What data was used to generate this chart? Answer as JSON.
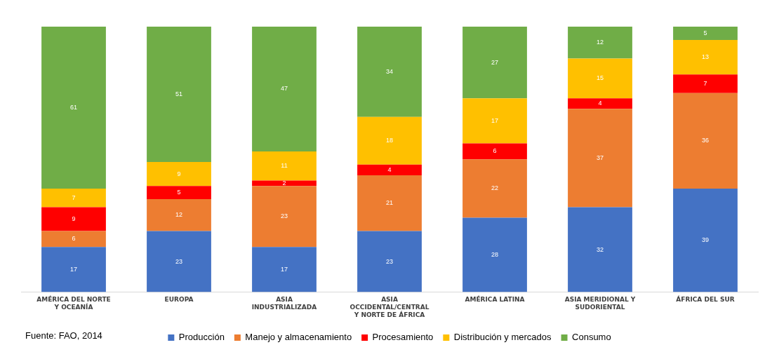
{
  "chart_data": {
    "type": "bar",
    "stacked": true,
    "data_labels": true,
    "legend": "bottom",
    "grid": false,
    "categories": [
      "AMÉRICA DEL NORTE\nY OCEANÍA",
      "EUROPA",
      "ASIA\nINDUSTRIALIZADA",
      "ASIA\nOCCIDENTAL/CENTRAL\nY NORTE DE ÁFRICA",
      "AMÉRICA LATINA",
      "ASIA MERIDIONAL Y\nSUDORIENTAL",
      "ÁFRICA DEL SUR"
    ],
    "series": [
      {
        "name": "Producción",
        "color": "#4472c4",
        "values": [
          17,
          23,
          17,
          23,
          28,
          32,
          39
        ]
      },
      {
        "name": "Manejo y almacenamiento",
        "color": "#ed7d31",
        "values": [
          6,
          12,
          23,
          21,
          22,
          37,
          36
        ]
      },
      {
        "name": "Procesamiento",
        "color": "#ff0000",
        "values": [
          9,
          5,
          2,
          4,
          6,
          4,
          7
        ]
      },
      {
        "name": "Distribución y mercados",
        "color": "#ffc000",
        "values": [
          7,
          9,
          11,
          18,
          17,
          15,
          13
        ]
      },
      {
        "name": "Consumo",
        "color": "#70ad47",
        "values": [
          61,
          51,
          47,
          34,
          27,
          12,
          5
        ]
      }
    ],
    "annotations": [
      "Fuente: FAO, 2014"
    ]
  }
}
